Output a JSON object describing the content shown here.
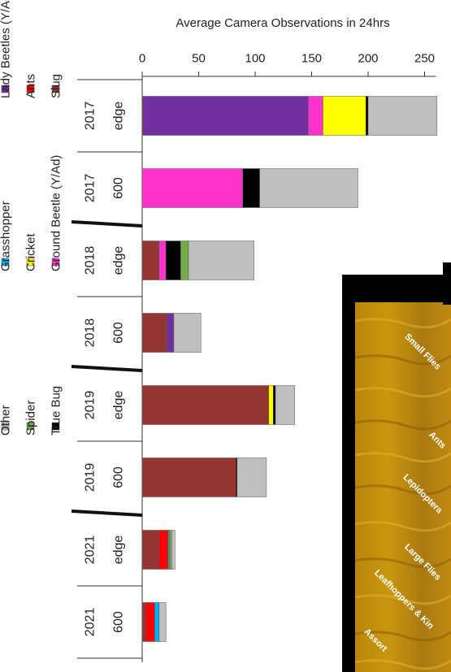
{
  "chart_data": {
    "type": "bar",
    "orientation": "horizontal-stacked",
    "title": "",
    "xlabel": "Average Camera Observations in 24hrs",
    "ylabel": "",
    "xlim": [
      0,
      260
    ],
    "xticks": [
      "0",
      "50",
      "100",
      "150",
      "200",
      "250"
    ],
    "grid": false,
    "legend_placement": "bottom",
    "categories": [
      {
        "site": "edge",
        "year": "2017"
      },
      {
        "site": "600",
        "year": "2017"
      },
      {
        "site": "edge",
        "year": "2018"
      },
      {
        "site": "600",
        "year": "2018"
      },
      {
        "site": "edge",
        "year": "2019"
      },
      {
        "site": "600",
        "year": "2019"
      },
      {
        "site": "edge",
        "year": "2021"
      },
      {
        "site": "600",
        "year": "2021"
      }
    ],
    "series": [
      {
        "name": "Slug",
        "color": "#943634",
        "values": [
          1,
          0,
          15,
          22,
          112,
          82,
          15,
          3
        ]
      },
      {
        "name": "Ants",
        "color": "#ff0000",
        "values": [
          0,
          0,
          0,
          0,
          0,
          1,
          8,
          8
        ]
      },
      {
        "name": "Lady Beetles (Y/Ad)",
        "color": "#7030a0",
        "values": [
          146,
          0,
          0,
          6,
          0,
          0,
          0,
          0
        ]
      },
      {
        "name": "Ground Beetle (Y/Ad)",
        "color": "#ff33cc",
        "values": [
          13,
          89,
          6,
          0,
          0,
          0,
          0,
          0
        ]
      },
      {
        "name": "Cricket",
        "color": "#ffff00",
        "values": [
          38,
          0,
          0,
          0,
          4,
          0,
          0,
          0
        ]
      },
      {
        "name": "Grasshopper",
        "color": "#00b0f0",
        "values": [
          0,
          0,
          0,
          0,
          0,
          0,
          1,
          4
        ]
      },
      {
        "name": "True Bug",
        "color": "#000000",
        "values": [
          2,
          15,
          13,
          0,
          2,
          1,
          0,
          0
        ]
      },
      {
        "name": "Spider",
        "color": "#70ad47",
        "values": [
          0,
          0,
          7,
          0,
          0,
          0,
          2,
          0
        ]
      },
      {
        "name": "Other",
        "color": "#bfbfbf",
        "values": [
          61,
          87,
          58,
          24,
          17,
          26,
          3,
          6
        ]
      }
    ],
    "legend_order": [
      "Slug",
      "Ants",
      "Lady Beetles (Y/Ad)",
      "Ground Beetle (Y/Ad)",
      "Cricket",
      "Grasshopper",
      "True Bug",
      "Spider",
      "Other"
    ]
  },
  "photo_inset": {
    "labels": [
      "Small Flies",
      "Ants",
      "Lepidoptera",
      "Large Flies",
      "Leafhoppers & Kin",
      "Assort"
    ]
  }
}
